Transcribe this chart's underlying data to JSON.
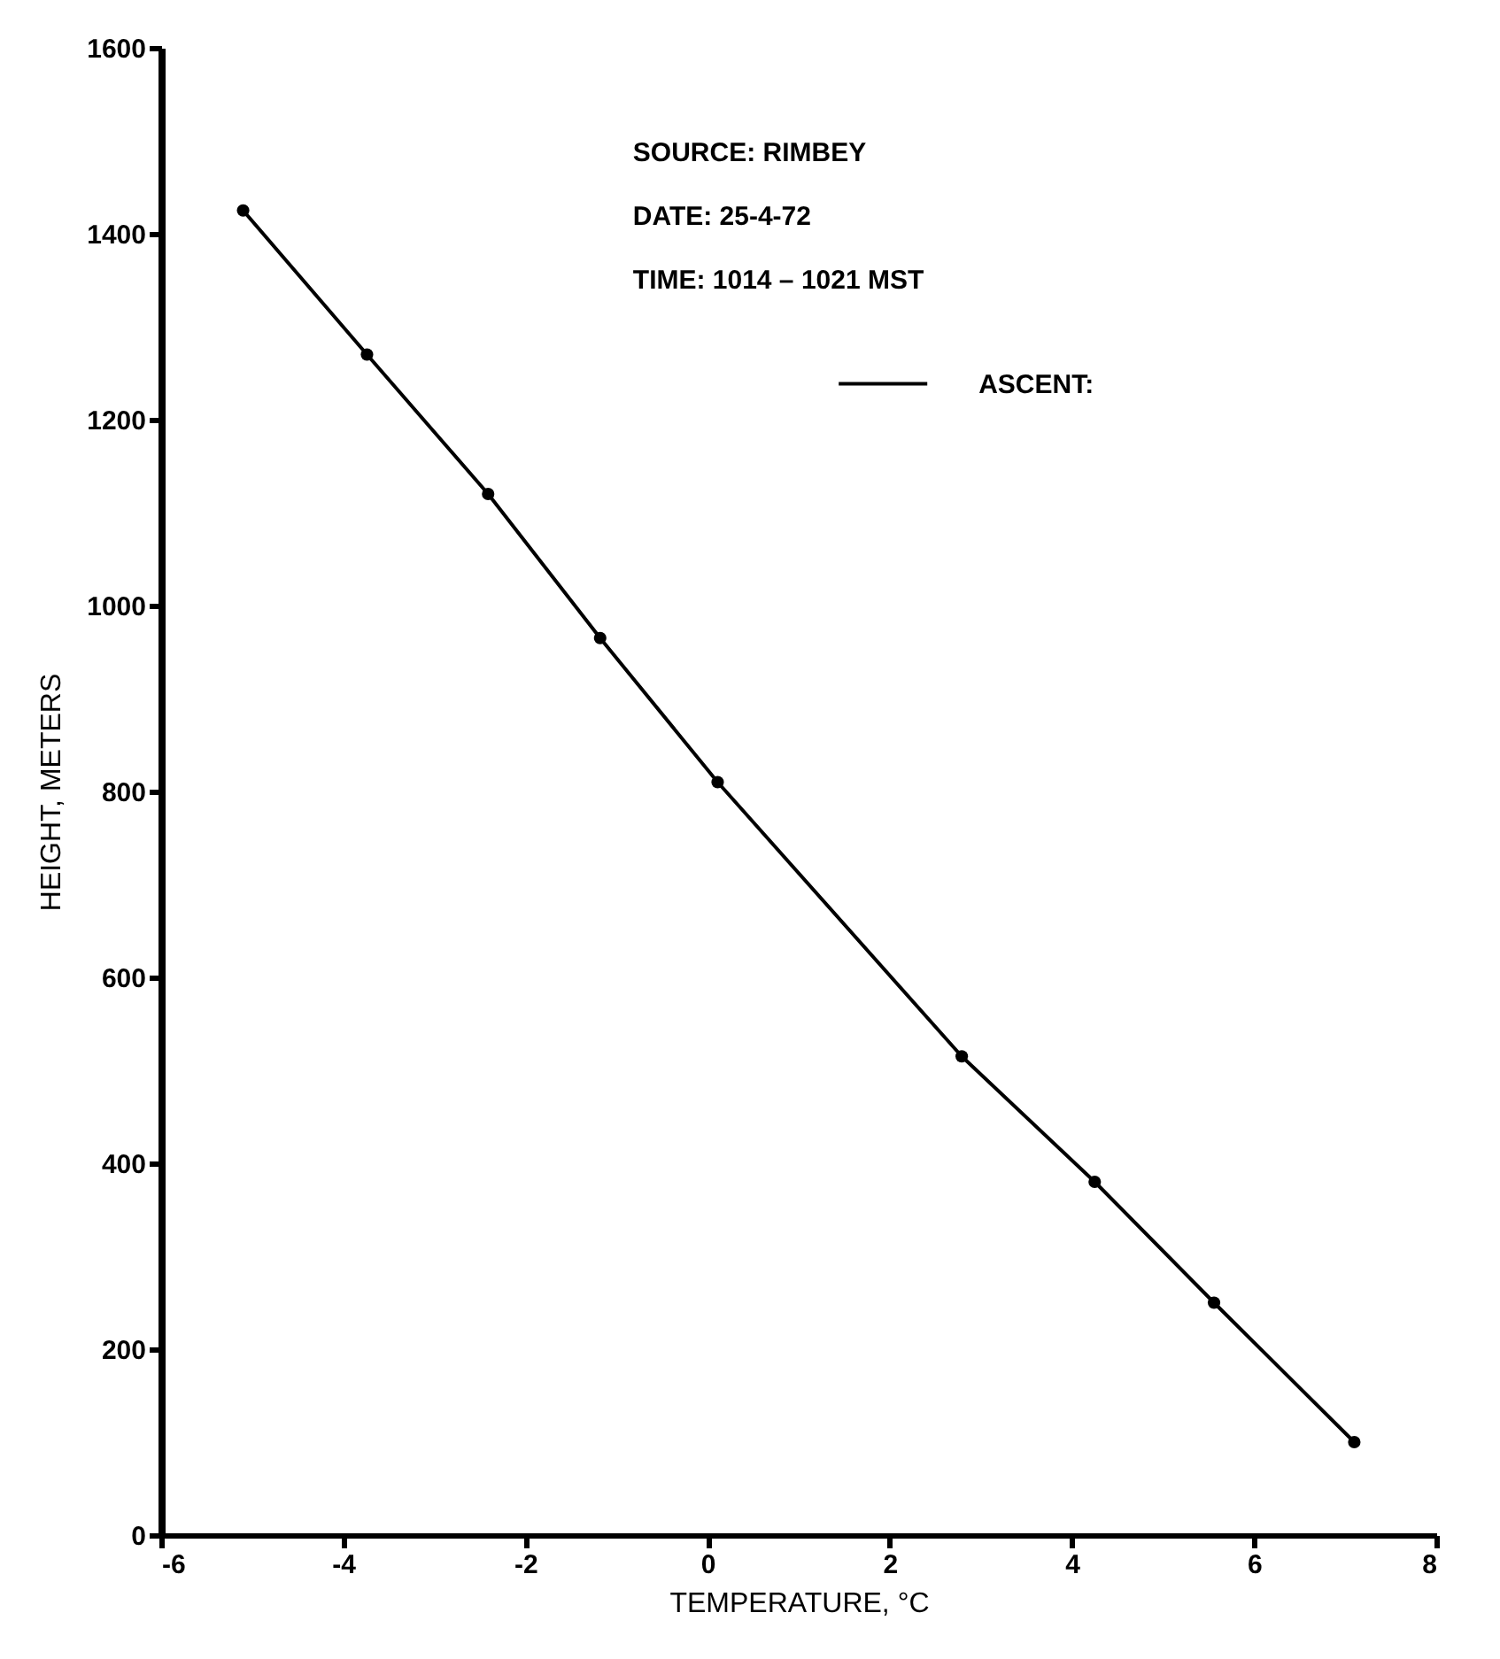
{
  "chart_data": {
    "type": "line",
    "xlabel": "TEMPERATURE, °C",
    "ylabel": "HEIGHT, METERS",
    "annotations": [
      "SOURCE:  RIMBEY",
      "DATE:     25-4-72",
      "TIME:      1014  –  1021  MST"
    ],
    "x": [
      -5.1,
      -3.74,
      -2.41,
      -1.18,
      0.11,
      2.79,
      4.25,
      5.56,
      7.1
    ],
    "series": [
      {
        "name": "ASCENT:",
        "color": "#000000",
        "values": [
          1425,
          1270,
          1120,
          965,
          810,
          515,
          380,
          250,
          100
        ]
      }
    ],
    "xlim": [
      -6,
      8
    ],
    "xticks": [
      -6,
      -4,
      -2,
      0,
      2,
      4,
      6,
      8
    ],
    "ylim": [
      0,
      1600
    ],
    "yticks": [
      0,
      200,
      400,
      600,
      800,
      1000,
      1200,
      1400,
      1600
    ],
    "grid": false,
    "legend": "top right",
    "marker": "circle",
    "line_style": "solid"
  }
}
